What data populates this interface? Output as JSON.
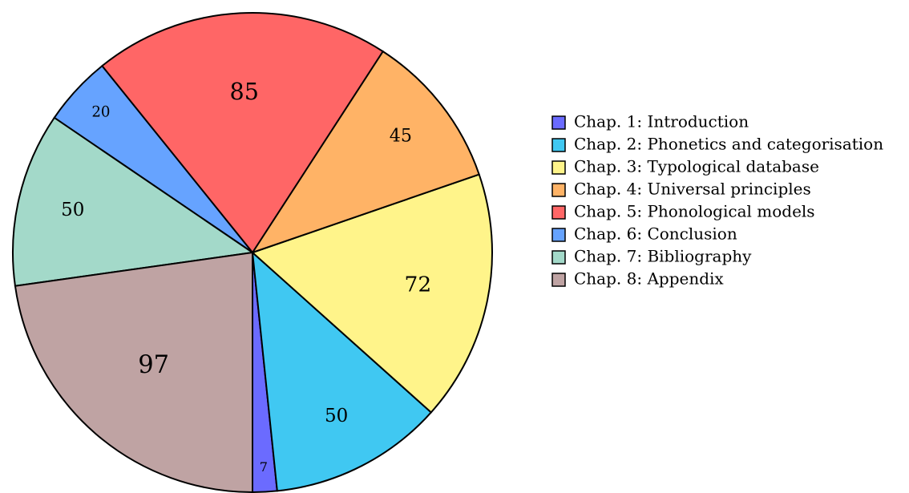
{
  "chart_data": {
    "type": "pie",
    "categories": [
      "Chap. 1: Introduction",
      "Chap. 2: Phonetics and categorisation",
      "Chap. 3: Typological database",
      "Chap. 4: Universal principles",
      "Chap. 5: Phonological models",
      "Chap. 6: Conclusion",
      "Chap. 7: Bibliography",
      "Chap. 8: Appendix"
    ],
    "values": [
      7,
      50,
      72,
      45,
      85,
      20,
      50,
      97
    ],
    "colors": [
      "#6b6bff",
      "#40c8f2",
      "#fff48a",
      "#ffb366",
      "#ff6666",
      "#66a3ff",
      "#a3d9c9",
      "#bfa3a3"
    ],
    "legend": "right"
  }
}
